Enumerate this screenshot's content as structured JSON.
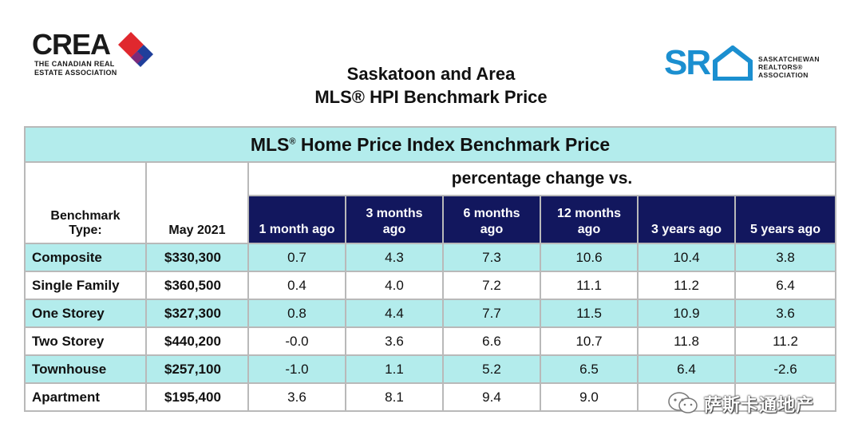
{
  "logos": {
    "crea_word": "CREA",
    "crea_sub_line1": "THE CANADIAN REAL",
    "crea_sub_line2": "ESTATE ASSOCIATION",
    "sra_word": "SR",
    "sra_line1": "SASKATCHEWAN",
    "sra_line2": "REALTORS®",
    "sra_line3": "ASSOCIATION"
  },
  "title": {
    "line1": "Saskatoon and Area",
    "line2": "MLS® HPI Benchmark Price"
  },
  "table": {
    "banner_prefix": "MLS",
    "banner_sup": "®",
    "banner_suffix": " Home Price Index Benchmark Price",
    "pct_heading": "percentage change vs.",
    "col_type_line1": "Benchmark",
    "col_type_line2": "Type:",
    "col_price": "May 2021",
    "pct_cols": [
      {
        "line1": "",
        "line2": "1 month ago"
      },
      {
        "line1": "3 months",
        "line2": "ago"
      },
      {
        "line1": "6 months",
        "line2": "ago"
      },
      {
        "line1": "12 months",
        "line2": "ago"
      },
      {
        "line1": "",
        "line2": "3 years ago"
      },
      {
        "line1": "",
        "line2": "5 years ago"
      }
    ],
    "rows": [
      {
        "type": "Composite",
        "price": "$330,300",
        "vals": [
          "0.7",
          "4.3",
          "7.3",
          "10.6",
          "10.4",
          "3.8"
        ]
      },
      {
        "type": "Single Family",
        "price": "$360,500",
        "vals": [
          "0.4",
          "4.0",
          "7.2",
          "11.1",
          "11.2",
          "6.4"
        ]
      },
      {
        "type": "One Storey",
        "price": "$327,300",
        "vals": [
          "0.8",
          "4.4",
          "7.7",
          "11.5",
          "10.9",
          "3.6"
        ]
      },
      {
        "type": "Two Storey",
        "price": "$440,200",
        "vals": [
          "-0.0",
          "3.6",
          "6.6",
          "10.7",
          "11.8",
          "11.2"
        ]
      },
      {
        "type": "Townhouse",
        "price": "$257,100",
        "vals": [
          "-1.0",
          "1.1",
          "5.2",
          "6.5",
          "6.4",
          "-2.6"
        ]
      },
      {
        "type": "Apartment",
        "price": "$195,400",
        "vals": [
          "3.6",
          "8.1",
          "9.4",
          "9.0",
          "",
          ""
        ]
      }
    ]
  },
  "watermark": {
    "text": "萨斯卡通地产",
    "icon": "wechat-icon"
  },
  "colors": {
    "teal": "#b3ecec",
    "navy": "#12175e",
    "crea_red": "#e0282e",
    "crea_blue": "#1f3f9b",
    "sra_blue": "#1b8fd0"
  }
}
